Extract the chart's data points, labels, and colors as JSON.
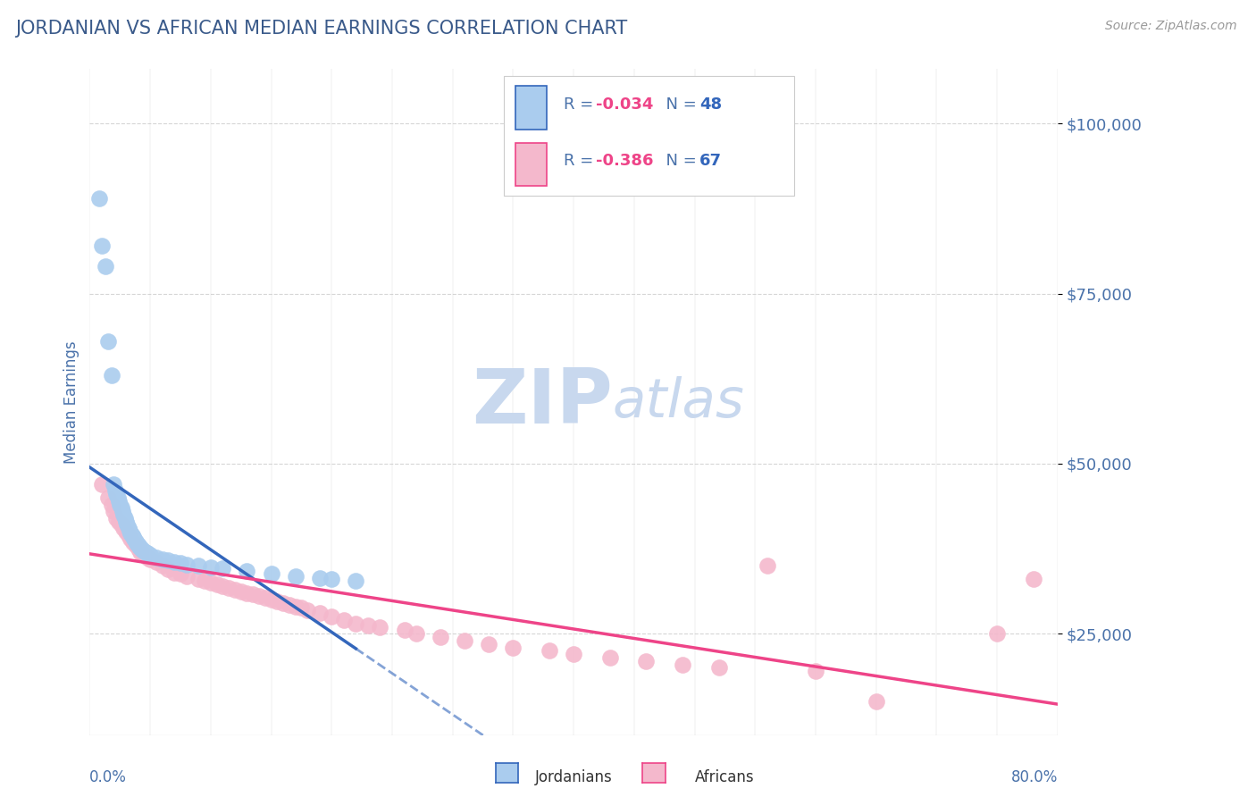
{
  "title": "JORDANIAN VS AFRICAN MEDIAN EARNINGS CORRELATION CHART",
  "source_text": "Source: ZipAtlas.com",
  "ylabel": "Median Earnings",
  "xlim": [
    0.0,
    0.8
  ],
  "ylim": [
    10000,
    108000
  ],
  "yticks": [
    25000,
    50000,
    75000,
    100000
  ],
  "ytick_labels": [
    "$25,000",
    "$50,000",
    "$75,000",
    "$100,000"
  ],
  "xtick_left_label": "0.0%",
  "xtick_right_label": "80.0%",
  "background_color": "#ffffff",
  "title_color": "#3a5a8a",
  "tick_color": "#4a72aa",
  "source_color": "#999999",
  "watermark_zip": "ZIP",
  "watermark_atlas": "atlas",
  "watermark_color": "#c8d8ee",
  "legend_R1": "R = -0.034",
  "legend_N1": "N = 48",
  "legend_R2": "R = -0.386",
  "legend_N2": "N = 67",
  "legend_label1": "Jordanians",
  "legend_label2": "Africans",
  "jordanian_color": "#aaccee",
  "african_color": "#f4b8cc",
  "jordanian_line_color": "#3366bb",
  "african_line_color": "#ee4488",
  "R_jordanian": -0.034,
  "N_jordanian": 48,
  "R_african": -0.386,
  "N_african": 67,
  "jordanian_x": [
    0.008,
    0.01,
    0.013,
    0.015,
    0.018,
    0.02,
    0.021,
    0.022,
    0.023,
    0.024,
    0.025,
    0.026,
    0.027,
    0.028,
    0.029,
    0.03,
    0.031,
    0.032,
    0.033,
    0.034,
    0.035,
    0.036,
    0.037,
    0.038,
    0.039,
    0.04,
    0.041,
    0.042,
    0.043,
    0.044,
    0.046,
    0.048,
    0.05,
    0.055,
    0.06,
    0.065,
    0.07,
    0.075,
    0.08,
    0.09,
    0.1,
    0.11,
    0.13,
    0.15,
    0.17,
    0.19,
    0.2,
    0.22
  ],
  "jordanian_y": [
    89000,
    82000,
    79000,
    68000,
    63000,
    47000,
    46000,
    45500,
    45000,
    44500,
    44000,
    43500,
    43000,
    42500,
    42000,
    41500,
    41000,
    40500,
    40200,
    39800,
    39500,
    39200,
    38900,
    38600,
    38300,
    38000,
    37800,
    37600,
    37400,
    37200,
    37000,
    36800,
    36600,
    36200,
    36000,
    35800,
    35600,
    35400,
    35200,
    35000,
    34800,
    34600,
    34200,
    33800,
    33500,
    33200,
    33000,
    32800
  ],
  "african_x": [
    0.01,
    0.015,
    0.018,
    0.02,
    0.022,
    0.024,
    0.026,
    0.028,
    0.03,
    0.032,
    0.034,
    0.036,
    0.038,
    0.04,
    0.042,
    0.044,
    0.046,
    0.048,
    0.05,
    0.055,
    0.06,
    0.065,
    0.07,
    0.075,
    0.08,
    0.09,
    0.095,
    0.1,
    0.105,
    0.11,
    0.115,
    0.12,
    0.125,
    0.13,
    0.135,
    0.14,
    0.145,
    0.15,
    0.155,
    0.16,
    0.165,
    0.17,
    0.175,
    0.18,
    0.19,
    0.2,
    0.21,
    0.22,
    0.23,
    0.24,
    0.26,
    0.27,
    0.29,
    0.31,
    0.33,
    0.35,
    0.38,
    0.4,
    0.43,
    0.46,
    0.49,
    0.52,
    0.56,
    0.6,
    0.65,
    0.75,
    0.78
  ],
  "african_y": [
    47000,
    45000,
    44000,
    43000,
    42000,
    41500,
    41000,
    40500,
    40000,
    39500,
    39000,
    38500,
    38000,
    37500,
    37000,
    36800,
    36500,
    36200,
    36000,
    35500,
    35000,
    34500,
    34000,
    33800,
    33500,
    33000,
    32800,
    32500,
    32300,
    32000,
    31800,
    31500,
    31200,
    31000,
    30800,
    30500,
    30300,
    30000,
    29800,
    29500,
    29200,
    29000,
    28800,
    28500,
    28000,
    27500,
    27000,
    26500,
    26200,
    26000,
    25500,
    25000,
    24500,
    24000,
    23500,
    23000,
    22500,
    22000,
    21500,
    21000,
    20500,
    20000,
    35000,
    19500,
    15000,
    25000,
    33000
  ]
}
